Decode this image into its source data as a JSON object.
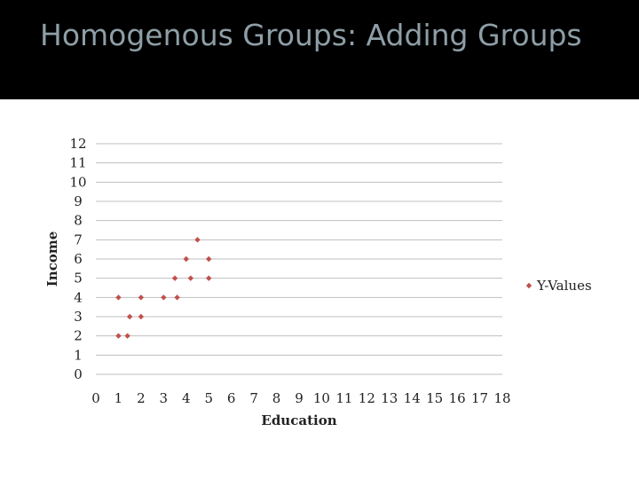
{
  "slide": {
    "title": "Homogenous Groups: Adding Groups"
  },
  "colors": {
    "title_bar": "#000000",
    "title_text": "#8e9ea6",
    "marker": "#c0504d",
    "grid": "#bfbfbf"
  },
  "chart_data": {
    "type": "scatter",
    "xlabel": "Education",
    "ylabel": "Income",
    "xlim": [
      0,
      18
    ],
    "ylim": [
      0,
      12
    ],
    "x_ticks": [
      0,
      1,
      2,
      3,
      4,
      5,
      6,
      7,
      8,
      9,
      10,
      11,
      12,
      13,
      14,
      15,
      16,
      17,
      18
    ],
    "y_ticks": [
      0,
      1,
      2,
      3,
      4,
      5,
      6,
      7,
      8,
      9,
      10,
      11,
      12
    ],
    "grid": "horizontal",
    "legend_position": "right",
    "series": [
      {
        "name": "Y-Values",
        "color": "#c0504d",
        "points": [
          [
            1,
            4
          ],
          [
            1,
            2
          ],
          [
            1.4,
            2
          ],
          [
            1.5,
            3
          ],
          [
            2,
            3
          ],
          [
            2,
            4
          ],
          [
            3,
            4
          ],
          [
            3.5,
            5
          ],
          [
            3.6,
            4
          ],
          [
            4,
            6
          ],
          [
            4.2,
            5
          ],
          [
            4.5,
            7
          ],
          [
            5,
            6
          ],
          [
            5,
            5
          ]
        ]
      }
    ]
  }
}
